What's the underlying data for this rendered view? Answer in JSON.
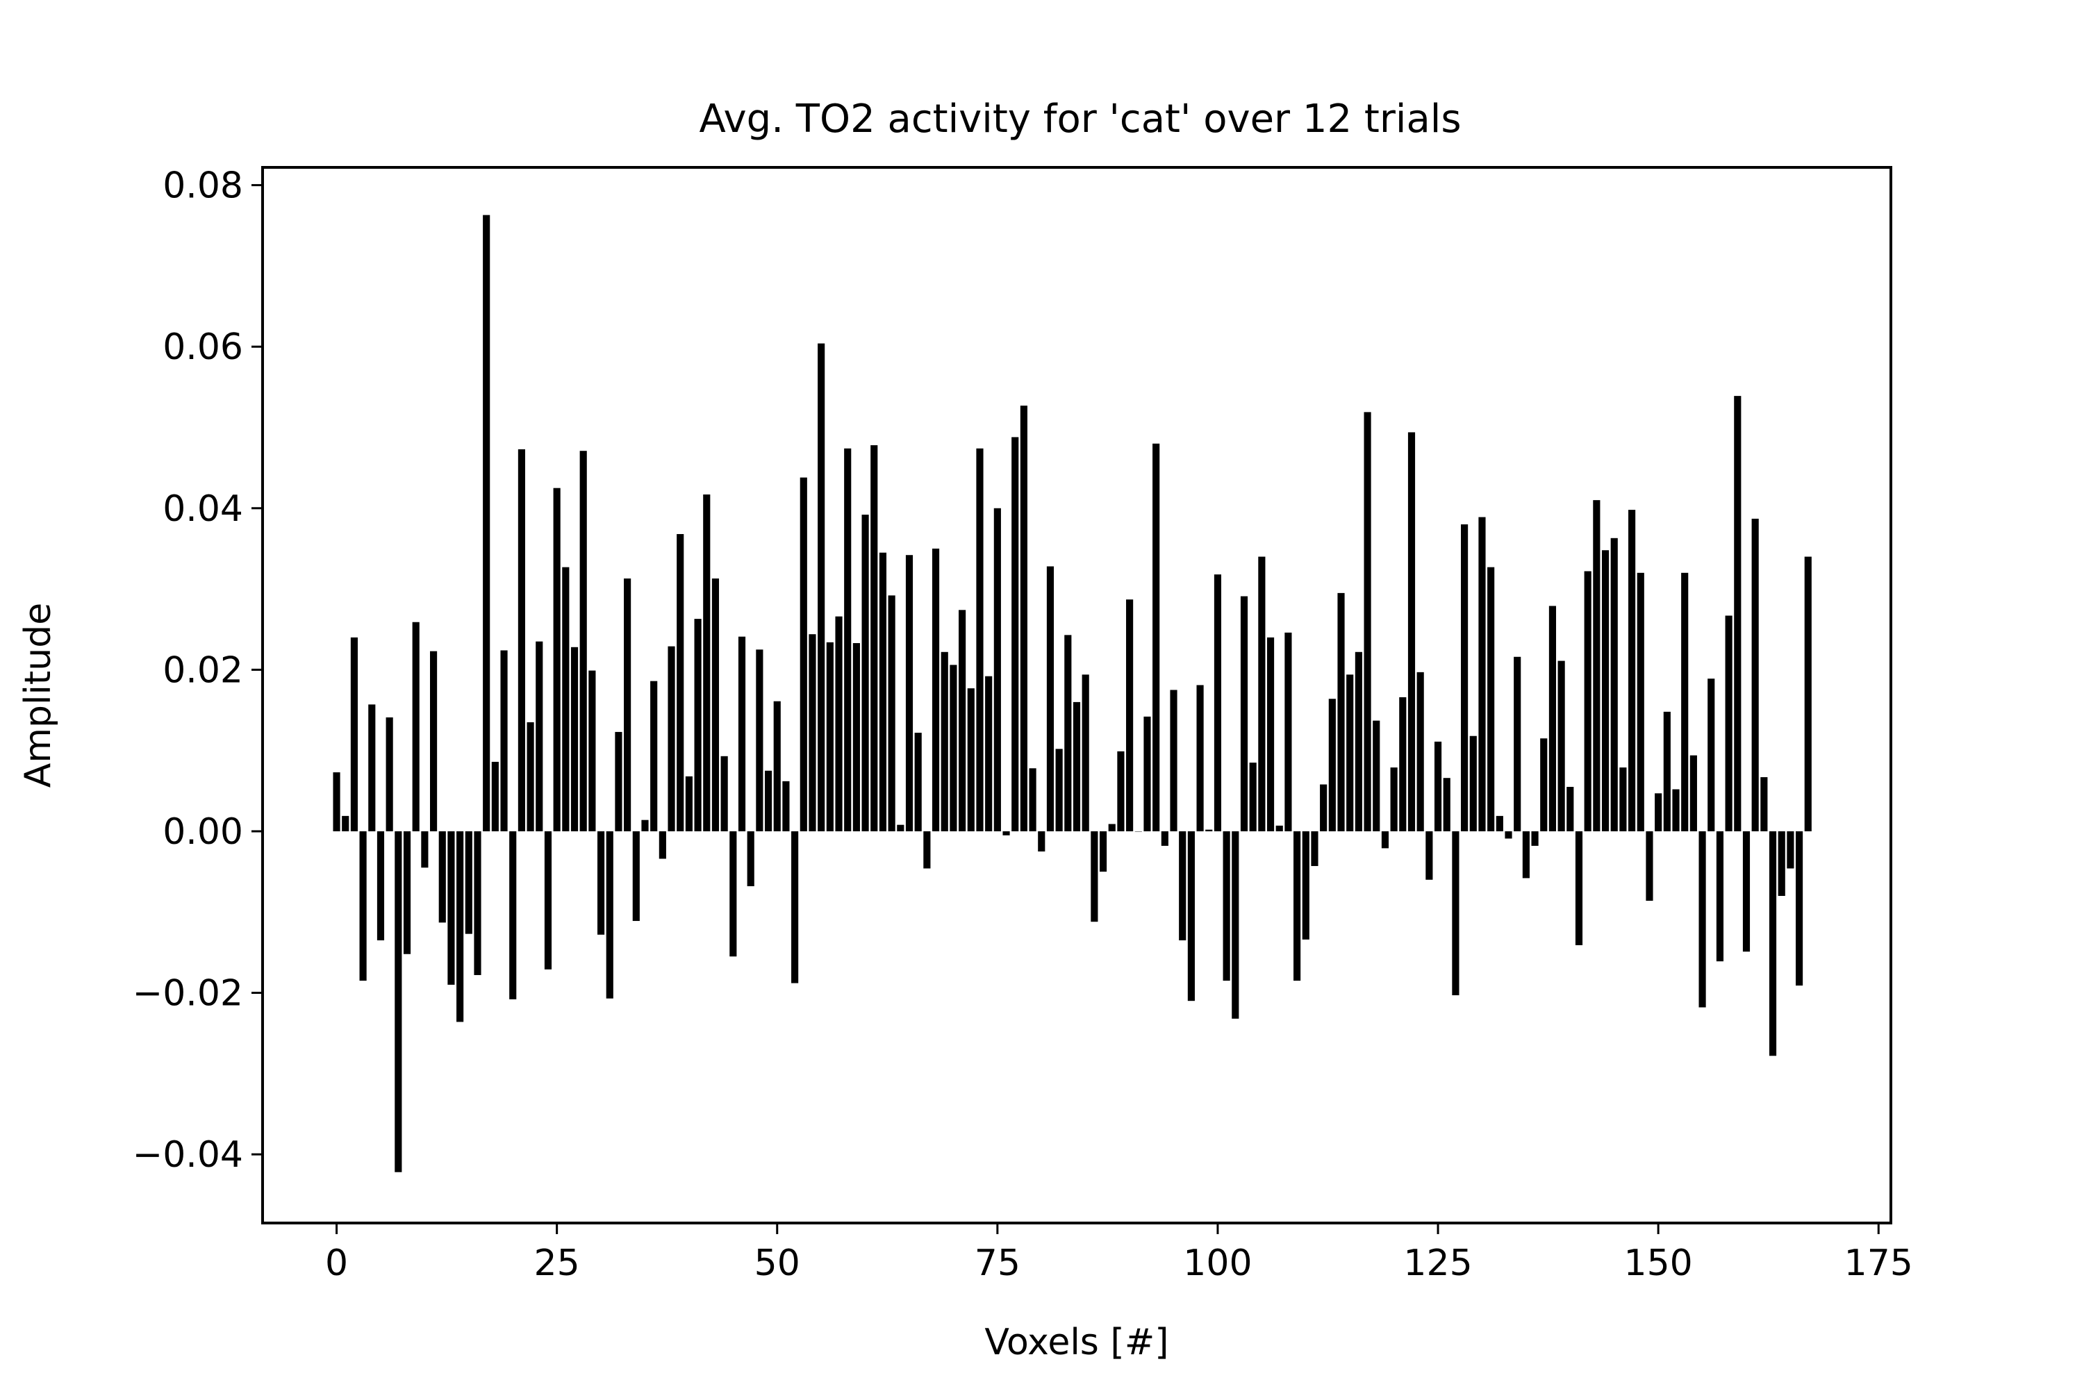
{
  "chart_data": {
    "type": "bar",
    "title": "Avg. TO2 activity for 'cat' over 12 trials",
    "xlabel": "Voxels [#]",
    "ylabel": "Amplitude",
    "xlim": [
      -8.4,
      176.4
    ],
    "ylim": [
      -0.0485,
      0.0822
    ],
    "xticks": [
      0,
      25,
      50,
      75,
      100,
      125,
      150,
      175
    ],
    "xtick_labels": [
      "0",
      "25",
      "50",
      "75",
      "100",
      "125",
      "150",
      "175"
    ],
    "yticks": [
      -0.04,
      -0.02,
      0.0,
      0.02,
      0.04,
      0.06,
      0.08
    ],
    "ytick_labels": [
      "−0.04",
      "−0.02",
      "0.00",
      "0.02",
      "0.04",
      "0.06",
      "0.08"
    ],
    "bar_color": "#000000",
    "grid": false,
    "values": [
      0.0073,
      0.0019,
      0.024,
      -0.0185,
      0.0157,
      -0.0135,
      0.0141,
      -0.0422,
      -0.0152,
      0.0259,
      -0.0045,
      0.0223,
      -0.0113,
      -0.019,
      -0.0236,
      -0.0127,
      -0.0178,
      0.0763,
      0.0086,
      0.0224,
      -0.0208,
      0.0473,
      0.0135,
      0.0235,
      -0.0171,
      0.0425,
      0.0327,
      0.0228,
      0.0471,
      0.0199,
      -0.0128,
      -0.0207,
      0.0123,
      0.0313,
      -0.0111,
      0.0014,
      0.0186,
      -0.0034,
      0.0229,
      0.0368,
      0.0068,
      0.0263,
      0.0417,
      0.0313,
      0.0093,
      -0.0155,
      0.0241,
      -0.0068,
      0.0225,
      0.0075,
      0.0161,
      0.0062,
      -0.0188,
      0.0438,
      0.0244,
      0.0604,
      0.0234,
      0.0266,
      0.0474,
      0.0233,
      0.0392,
      0.0478,
      0.0345,
      0.0292,
      0.0008,
      0.0342,
      0.0122,
      -0.0046,
      0.035,
      0.0222,
      0.0206,
      0.0274,
      0.0177,
      0.0474,
      0.0192,
      0.04,
      -0.0005,
      0.0488,
      0.0527,
      0.0078,
      -0.0025,
      0.0328,
      0.0102,
      0.0243,
      0.016,
      0.0194,
      -0.0112,
      -0.005,
      0.0009,
      0.0099,
      0.0287,
      0.0,
      0.0142,
      0.048,
      -0.0018,
      0.0175,
      -0.0135,
      -0.021,
      0.0181,
      0.0002,
      0.0318,
      -0.0185,
      -0.0232,
      0.0291,
      0.0085,
      0.034,
      0.024,
      0.0007,
      0.0246,
      -0.0185,
      -0.0134,
      -0.0043,
      0.0058,
      0.0164,
      0.0295,
      0.0194,
      0.0222,
      0.0519,
      0.0137,
      -0.0021,
      0.0079,
      0.0166,
      0.0494,
      0.0197,
      -0.006,
      0.0111,
      0.0066,
      -0.0203,
      0.038,
      0.0118,
      0.0389,
      0.0327,
      0.0019,
      -0.0009,
      0.0216,
      -0.0058,
      -0.0018,
      0.0115,
      0.0279,
      0.0211,
      0.0055,
      -0.0141,
      0.0322,
      0.041,
      0.0348,
      0.0363,
      0.0079,
      0.0398,
      0.032,
      -0.0086,
      0.0047,
      0.0148,
      0.0052,
      0.032,
      0.0094,
      -0.0218,
      0.0189,
      -0.0161,
      0.0267,
      0.0539,
      -0.0149,
      0.0387,
      0.0067,
      -0.0278,
      -0.008,
      -0.0046,
      -0.0191,
      0.034
    ]
  }
}
